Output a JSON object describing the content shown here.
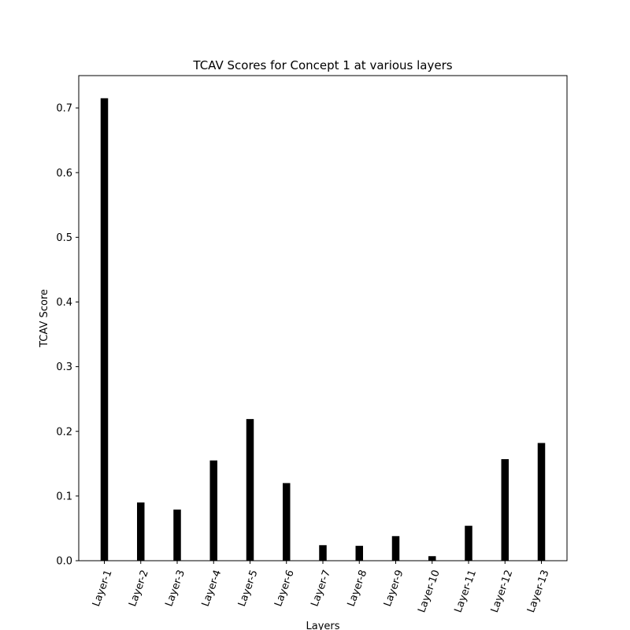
{
  "chart_data": {
    "type": "bar",
    "title": "TCAV Scores for Concept 1 at various layers",
    "xlabel": "Layers",
    "ylabel": "TCAV Score",
    "categories": [
      "Layer-1",
      "Layer-2",
      "Layer-3",
      "Layer-4",
      "Layer-5",
      "Layer-6",
      "Layer-7",
      "Layer-8",
      "Layer-9",
      "Layer-10",
      "Layer-11",
      "Layer-12",
      "Layer-13"
    ],
    "values": [
      0.715,
      0.09,
      0.079,
      0.155,
      0.219,
      0.12,
      0.024,
      0.023,
      0.038,
      0.007,
      0.054,
      0.157,
      0.182
    ],
    "ylim": [
      0,
      0.75
    ],
    "yticks": [
      "0.0",
      "0.1",
      "0.2",
      "0.3",
      "0.4",
      "0.5",
      "0.6",
      "0.7"
    ],
    "bar_color": "#000000",
    "grid": false,
    "legend": "none"
  }
}
